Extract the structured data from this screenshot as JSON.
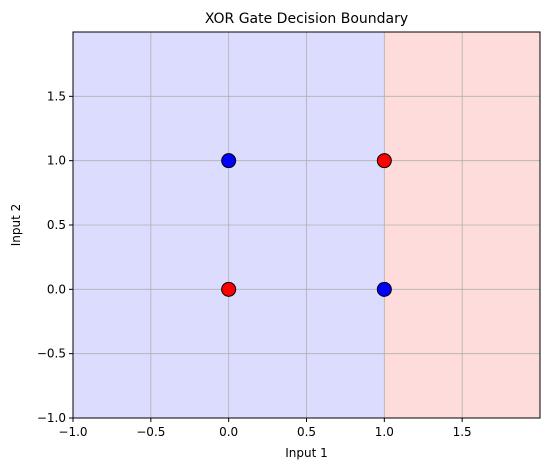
{
  "chart_data": {
    "type": "scatter",
    "title": "XOR Gate Decision Boundary",
    "xlabel": "Input 1",
    "ylabel": "Input 2",
    "xlim": [
      -1.0,
      2.0
    ],
    "ylim": [
      -1.0,
      2.0
    ],
    "grid": true,
    "x_ticks": [
      -1.0,
      -0.5,
      0.0,
      0.5,
      1.0,
      1.5
    ],
    "y_ticks": [
      -1.0,
      -0.5,
      0.0,
      0.5,
      1.0,
      1.5
    ],
    "x_tick_labels": [
      "−1.0",
      "−0.5",
      "0.0",
      "0.5",
      "1.0",
      "1.5"
    ],
    "y_tick_labels": [
      "−1.0",
      "−0.5",
      "0.0",
      "0.5",
      "1.0",
      "1.5"
    ],
    "decision_regions": [
      {
        "x_range": [
          -1.0,
          1.0
        ],
        "color": "#dcdcff"
      },
      {
        "x_range": [
          1.0,
          2.0
        ],
        "color": "#ffdcdc"
      }
    ],
    "points": [
      {
        "x": 0.0,
        "y": 0.0,
        "color": "#ff0000"
      },
      {
        "x": 0.0,
        "y": 1.0,
        "color": "#0000ff"
      },
      {
        "x": 1.0,
        "y": 0.0,
        "color": "#0000ff"
      },
      {
        "x": 1.0,
        "y": 1.0,
        "color": "#ff0000"
      }
    ]
  }
}
